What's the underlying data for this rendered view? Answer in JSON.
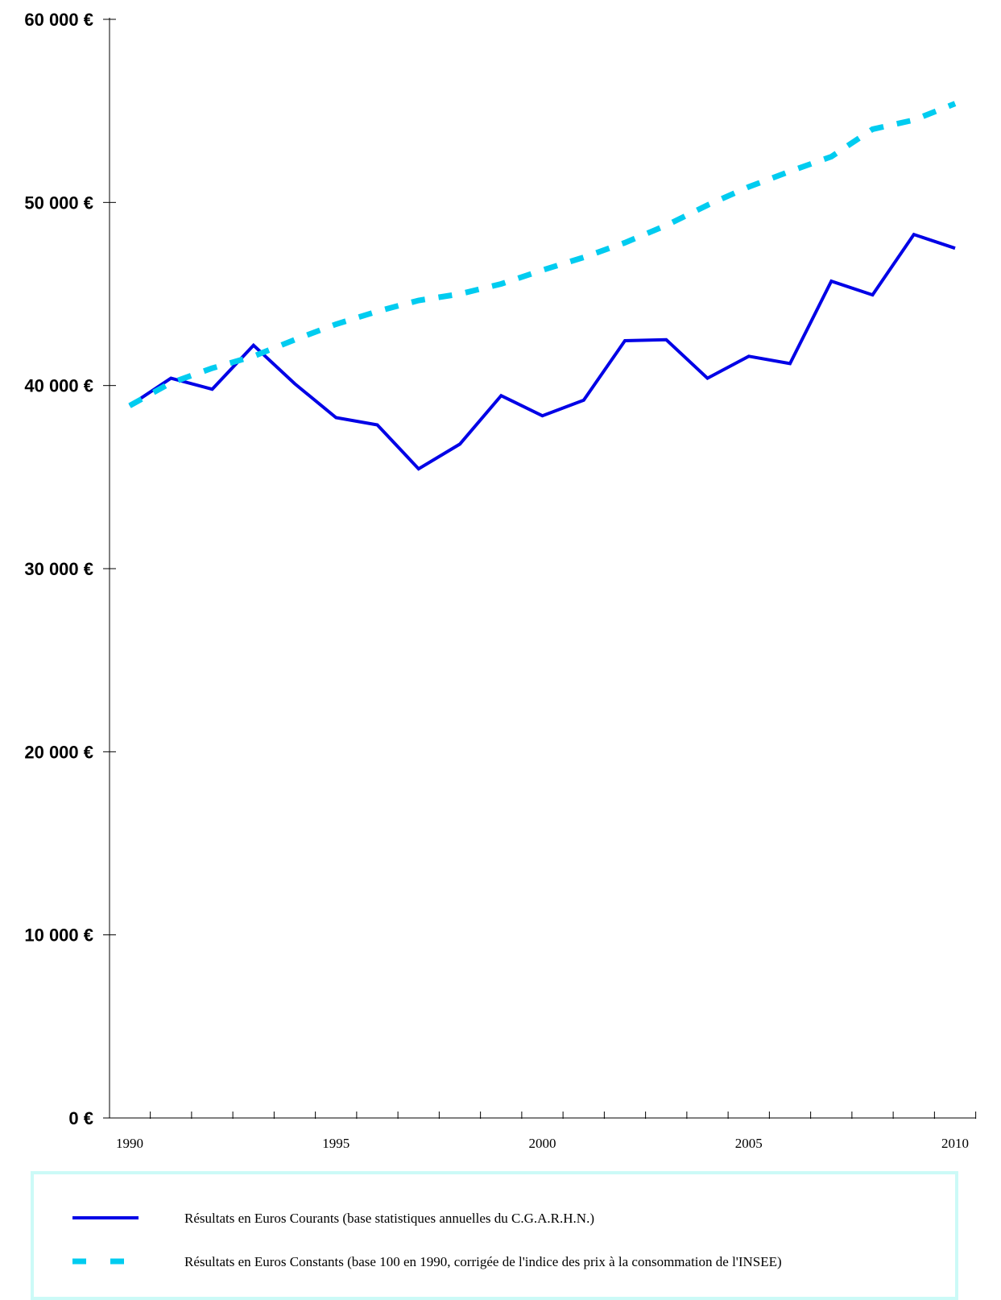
{
  "chart_data": {
    "type": "line",
    "title": "",
    "xlabel": "",
    "ylabel": "",
    "x": [
      1990,
      1991,
      1992,
      1993,
      1994,
      1995,
      1996,
      1997,
      1998,
      1999,
      2000,
      2001,
      2002,
      2003,
      2004,
      2005,
      2006,
      2007,
      2008,
      2009,
      2010
    ],
    "xlim": [
      1990,
      2010
    ],
    "ylim": [
      0,
      60000
    ],
    "yticks": [
      0,
      10000,
      20000,
      30000,
      40000,
      50000,
      60000
    ],
    "ytick_labels": [
      "0 €",
      "10 000 €",
      "20 000 €",
      "30 000 €",
      "40 000 €",
      "50 000 €",
      "60 000 €"
    ],
    "xtick_labels": [
      "1990",
      "1995",
      "2000",
      "2005",
      "2010"
    ],
    "xtick_label_values": [
      1990,
      1995,
      2000,
      2005,
      2010
    ],
    "grid": false,
    "legend_position": "bottom",
    "series": [
      {
        "name": "Résultats en Euros Courants (base statistiques annuelles du C.G.A.R.H.N.)",
        "color": "#0000e6",
        "style": "solid",
        "values": [
          38900,
          40400,
          39800,
          42200,
          40100,
          38250,
          37850,
          35450,
          36800,
          39450,
          38350,
          39200,
          42450,
          42500,
          40400,
          41600,
          41200,
          45700,
          44950,
          48250,
          47500
        ]
      },
      {
        "name": "Résultats en Euros Constants (base 100 en 1990, corrigée de l'indice des prix à la consommation de l'INSEE)",
        "color": "#00ccf0",
        "style": "dashed",
        "values": [
          38900,
          40150,
          40950,
          41600,
          42500,
          43350,
          44050,
          44650,
          45000,
          45550,
          46300,
          47000,
          47800,
          48750,
          49850,
          50850,
          51700,
          52500,
          54000,
          54500,
          55400
        ]
      }
    ]
  }
}
